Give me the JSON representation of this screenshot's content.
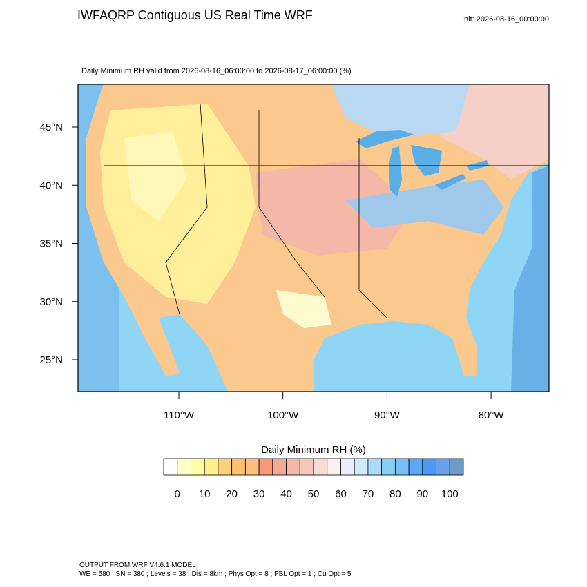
{
  "header": {
    "title": "IWFAQRP Contiguous US Real Time WRF",
    "init": "Init: 2026-08-16_00:00:00"
  },
  "map": {
    "subtitle": "Daily Minimum RH valid from 2026-08-16_06:00:00 to 2026-08-17_06:00:00   (%)",
    "lat_labels": [
      "45°N",
      "40°N",
      "35°N",
      "30°N",
      "25°N"
    ],
    "lon_labels": [
      "110°W",
      "100°W",
      "90°W",
      "80°W"
    ]
  },
  "colorbar": {
    "title": "Daily Minimum RH  (%)",
    "labels": [
      "0",
      "10",
      "20",
      "30",
      "40",
      "50",
      "60",
      "70",
      "80",
      "90",
      "100"
    ],
    "colors": [
      "#ffffff",
      "#ffffc8",
      "#ffffa8",
      "#fff08c",
      "#fdd27a",
      "#fcc06e",
      "#fdc080",
      "#f89878",
      "#f4a896",
      "#f2b8aa",
      "#f4c8bc",
      "#f6dcd4",
      "#fdf0f0",
      "#eaeefc",
      "#d2e8fb",
      "#a8dcf8",
      "#86d0f6",
      "#78bef8",
      "#5aa8f8",
      "#4c98f8",
      "#6aa0e8",
      "#6e9ac8"
    ]
  },
  "footer": {
    "line1": "OUTPUT FROM WRF V4.6.1 MODEL",
    "line2": "WE = 580 ; SN = 380 ; Levels = 38 ; Dis = 8km ; Phys Opt = 8 ; PBL Opt = 1 ; Cu Opt = 5"
  }
}
